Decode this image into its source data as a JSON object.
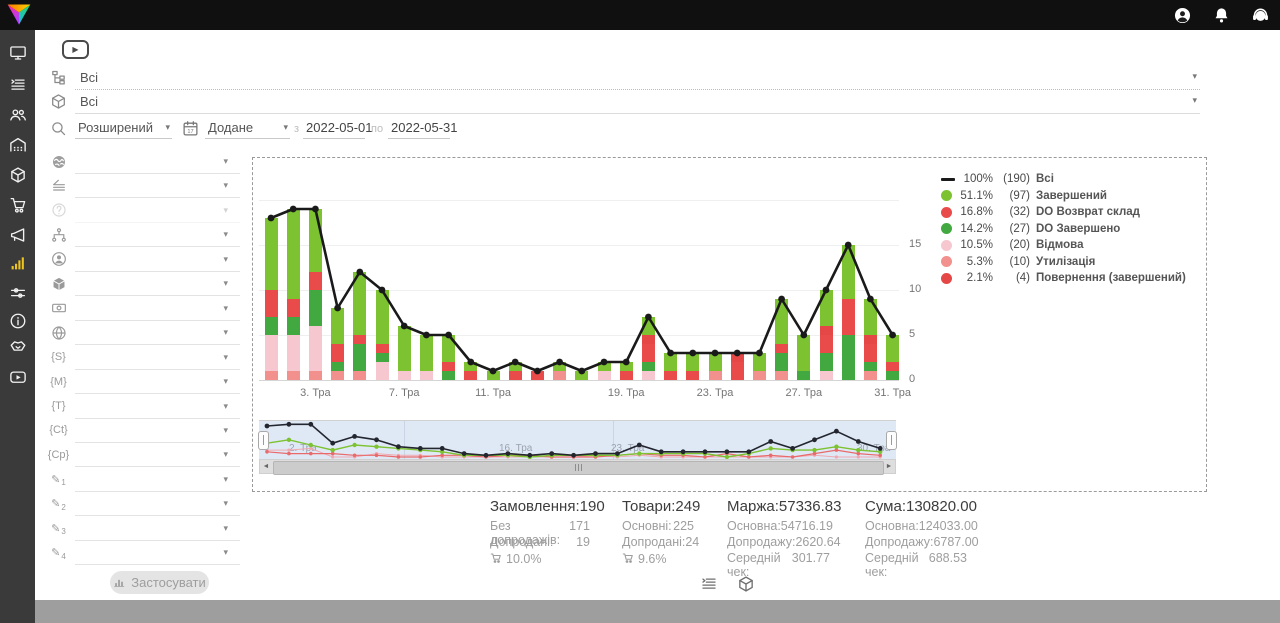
{
  "topbar": {
    "icons": [
      "user",
      "bell",
      "headset"
    ]
  },
  "sidebar": {
    "items": [
      "monitor",
      "orders",
      "customers",
      "warehouse",
      "package",
      "trolley",
      "megaphone",
      "stats",
      "sliders",
      "info",
      "handshake",
      "video"
    ],
    "active": "stats",
    "active_color": "#edc51f"
  },
  "toolbar": {
    "video_button_glyph": "▶"
  },
  "selects": {
    "category": "Всі",
    "product": "Всі",
    "mode": "Розширений",
    "date_field": "Додане",
    "from_label": "з",
    "from": "2022-05-01",
    "to_label": "по",
    "to": "2022-05-31"
  },
  "filter_rows": [
    {
      "icon": "earth"
    },
    {
      "icon": "funnel"
    },
    {
      "icon": "help",
      "disabled": true
    },
    {
      "icon": "sitemap"
    },
    {
      "icon": "user-circle"
    },
    {
      "icon": "cube"
    },
    {
      "icon": "banknote"
    },
    {
      "icon": "globe"
    },
    {
      "icon": "tag",
      "text": "{S}"
    },
    {
      "icon": "tag",
      "text": "{M}"
    },
    {
      "icon": "tag",
      "text": "{T}"
    },
    {
      "icon": "tag",
      "text": "{Ct}"
    },
    {
      "icon": "tag",
      "text": "{Cp}"
    },
    {
      "icon": "pencil",
      "num": "1"
    },
    {
      "icon": "pencil",
      "num": "2"
    },
    {
      "icon": "pencil",
      "num": "3"
    },
    {
      "icon": "pencil",
      "num": "4"
    }
  ],
  "apply_button": "Застосувати",
  "chart_data": {
    "type": "bar",
    "title": "",
    "x_tick_labels": {
      "2": "3. Тра",
      "6": "7. Тра",
      "10": "11. Тра",
      "16": "19. Тра",
      "20": "23. Тра",
      "24": "27. Тра",
      "28": "31. Тра"
    },
    "yticks": [
      0,
      5,
      10,
      15
    ],
    "ylim": [
      0,
      20
    ],
    "totals_series_name": "Всі",
    "totals": [
      18,
      19,
      19,
      8,
      12,
      10,
      6,
      5,
      5,
      2,
      1,
      2,
      1,
      2,
      1,
      2,
      2,
      7,
      3,
      3,
      3,
      3,
      3,
      9,
      5,
      10,
      15,
      9,
      5
    ],
    "series": [
      {
        "name": "Завершений",
        "color": "#7cc231",
        "values": [
          8,
          10,
          7,
          4,
          7,
          6,
          5,
          4,
          3,
          1,
          1,
          1,
          0,
          1,
          1,
          1,
          1,
          2,
          2,
          2,
          2,
          0,
          2,
          5,
          4,
          4,
          6,
          4,
          3
        ]
      },
      {
        "name": "DO Возврат склад",
        "color": "#e94b4b",
        "values": [
          3,
          2,
          2,
          2,
          1,
          1,
          0,
          0,
          1,
          1,
          0,
          1,
          1,
          0,
          0,
          0,
          1,
          2,
          1,
          1,
          0,
          2,
          0,
          1,
          0,
          2,
          4,
          2,
          1
        ]
      },
      {
        "name": "DO Завершено",
        "color": "#41a940",
        "values": [
          2,
          2,
          4,
          1,
          3,
          1,
          0,
          0,
          1,
          0,
          0,
          0,
          0,
          0,
          0,
          0,
          0,
          1,
          0,
          0,
          0,
          0,
          0,
          2,
          1,
          2,
          5,
          1,
          1
        ]
      },
      {
        "name": "Відмова",
        "color": "#f6c7ce",
        "values": [
          4,
          4,
          5,
          0,
          0,
          2,
          1,
          1,
          0,
          0,
          0,
          0,
          0,
          0,
          0,
          1,
          0,
          1,
          0,
          0,
          0,
          0,
          0,
          0,
          0,
          1,
          0,
          0,
          0
        ]
      },
      {
        "name": "Утилізація",
        "color": "#f1908c",
        "values": [
          1,
          1,
          1,
          1,
          1,
          0,
          0,
          0,
          0,
          0,
          0,
          0,
          0,
          1,
          0,
          0,
          0,
          0,
          0,
          0,
          1,
          0,
          1,
          1,
          0,
          0,
          0,
          1,
          0
        ]
      },
      {
        "name": "Повернення (завершений)",
        "color": "#e54747",
        "values": [
          0,
          0,
          0,
          0,
          0,
          0,
          0,
          0,
          0,
          0,
          0,
          0,
          0,
          0,
          0,
          0,
          0,
          1,
          0,
          0,
          0,
          1,
          0,
          0,
          0,
          1,
          0,
          1,
          0
        ]
      }
    ],
    "legend": [
      {
        "pct": "100%",
        "count": "(190)",
        "label": "Всі",
        "marker": "line",
        "color": "#1a1a1a"
      },
      {
        "pct": "51.1%",
        "count": "(97)",
        "label": "Завершений",
        "marker": "circle",
        "color": "#7cc231"
      },
      {
        "pct": "16.8%",
        "count": "(32)",
        "label": "DO Возврат склад",
        "marker": "circle",
        "color": "#e94b4b"
      },
      {
        "pct": "14.2%",
        "count": "(27)",
        "label": "DO Завершено",
        "marker": "circle",
        "color": "#41a940"
      },
      {
        "pct": "10.5%",
        "count": "(20)",
        "label": "Відмова",
        "marker": "circle",
        "color": "#f6c7ce"
      },
      {
        "pct": "5.3%",
        "count": "(10)",
        "label": "Утилізація",
        "marker": "circle",
        "color": "#f1908c"
      },
      {
        "pct": "2.1%",
        "count": "(4)",
        "label": "Повернення (завершений)",
        "marker": "circle",
        "color": "#e54747"
      }
    ],
    "navigator_labels": [
      "2. Тра",
      "16. Тра",
      "23. Тра",
      "30. Тра"
    ]
  },
  "stats": {
    "columns": [
      {
        "title": "Замовлення:",
        "value": "190",
        "rows": [
          {
            "label": "Без допродажів:",
            "value": "171"
          },
          {
            "label": "Допродані:",
            "value": "19"
          }
        ],
        "pct": "10.0%"
      },
      {
        "title": "Товари:",
        "value": "249",
        "rows": [
          {
            "label": "Основні:",
            "value": "225"
          },
          {
            "label": "Допродані:",
            "value": "24"
          }
        ],
        "pct": "9.6%"
      },
      {
        "title": "Маржа:",
        "value": "57336.83",
        "rows": [
          {
            "label": "Основна:",
            "value": "54716.19"
          },
          {
            "label": "Допродажу:",
            "value": "2620.64"
          },
          {
            "label": "Середній чек:",
            "value": "301.77"
          }
        ]
      },
      {
        "title": "Сума:",
        "value": "130820.00",
        "rows": [
          {
            "label": "Основна:",
            "value": "124033.00"
          },
          {
            "label": "Допродажу:",
            "value": "6787.00"
          },
          {
            "label": "Середній чек:",
            "value": "688.53"
          }
        ]
      }
    ]
  },
  "footer_toggles": [
    "orders",
    "package"
  ]
}
